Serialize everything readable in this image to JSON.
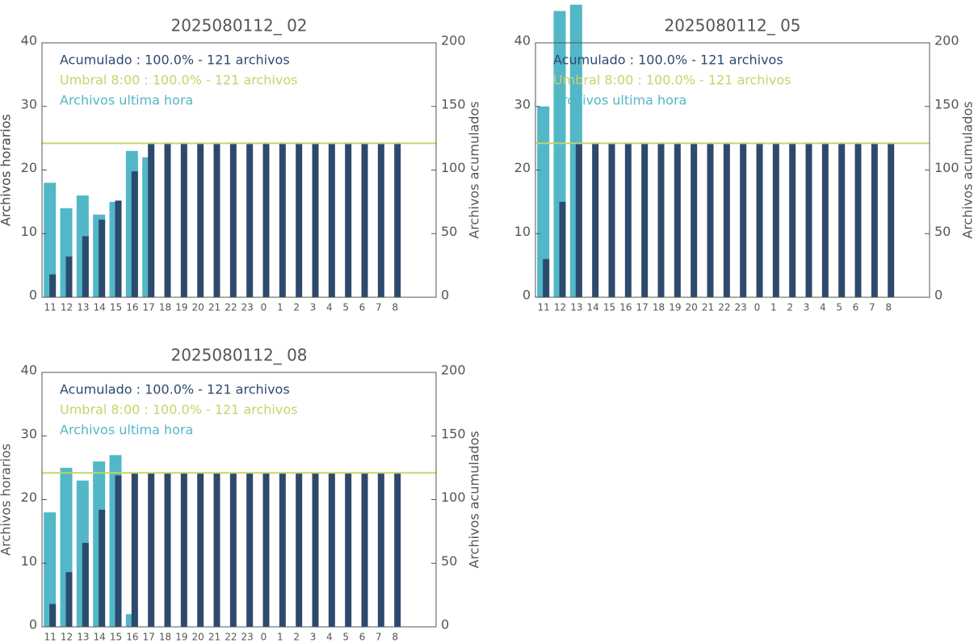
{
  "chart_data": [
    {
      "type": "bar",
      "title": "2025080112_ 02",
      "ylabel": "Archivos horarios",
      "y2label": "Archivos acumulados",
      "categories": [
        "11",
        "12",
        "13",
        "14",
        "15",
        "16",
        "17",
        "18",
        "19",
        "20",
        "21",
        "22",
        "23",
        "0",
        "1",
        "2",
        "3",
        "4",
        "5",
        "6",
        "7",
        "8"
      ],
      "series": [
        {
          "color": "#52b7c7",
          "values": [
            18,
            14,
            16,
            13,
            15,
            23,
            22,
            0,
            0,
            0,
            0,
            0,
            0,
            0,
            0,
            0,
            0,
            0,
            0,
            0,
            0,
            0
          ]
        },
        {
          "color": "#2c4a6e",
          "axis": "y2",
          "values": [
            18,
            32,
            48,
            61,
            76,
            99,
            121,
            121,
            121,
            121,
            121,
            121,
            121,
            121,
            121,
            121,
            121,
            121,
            121,
            121,
            121,
            121
          ]
        }
      ],
      "threshold": {
        "value": 121,
        "axis": "y2",
        "color": "#c5d46a"
      },
      "annotations": [
        {
          "text": "Acumulado : 100.0% - 121 archivos",
          "color": "#2c4a6e"
        },
        {
          "text": "Umbral 8:00 : 100.0% - 121 archivos",
          "color": "#c5d46a"
        },
        {
          "text": "Archivos ultima hora",
          "color": "#52b7c7"
        }
      ],
      "ylim": [
        0,
        40
      ],
      "yticks": [
        0,
        10,
        20,
        30,
        40
      ],
      "y2lim": [
        0,
        200
      ],
      "y2ticks": [
        0,
        50,
        100,
        150,
        200
      ]
    },
    {
      "type": "bar",
      "title": "2025080112_ 05",
      "ylabel": "Archivos horarios",
      "y2label": "Archivos acumulados",
      "categories": [
        "11",
        "12",
        "13",
        "14",
        "15",
        "16",
        "17",
        "18",
        "19",
        "20",
        "21",
        "22",
        "23",
        "0",
        "1",
        "2",
        "3",
        "4",
        "5",
        "6",
        "7",
        "8"
      ],
      "series": [
        {
          "color": "#52b7c7",
          "values": [
            30,
            45,
            46,
            0,
            0,
            0,
            0,
            0,
            0,
            0,
            0,
            0,
            0,
            0,
            0,
            0,
            0,
            0,
            0,
            0,
            0,
            0
          ]
        },
        {
          "color": "#2c4a6e",
          "axis": "y2",
          "values": [
            30,
            75,
            121,
            121,
            121,
            121,
            121,
            121,
            121,
            121,
            121,
            121,
            121,
            121,
            121,
            121,
            121,
            121,
            121,
            121,
            121,
            121
          ]
        }
      ],
      "threshold": {
        "value": 121,
        "axis": "y2",
        "color": "#c5d46a"
      },
      "annotations": [
        {
          "text": "Acumulado : 100.0% - 121 archivos",
          "color": "#2c4a6e"
        },
        {
          "text": "Umbral 8:00 : 100.0% - 121 archivos",
          "color": "#c5d46a"
        },
        {
          "text": "Archivos ultima hora",
          "color": "#52b7c7"
        }
      ],
      "ylim": [
        0,
        40
      ],
      "yticks": [
        0,
        10,
        20,
        30,
        40
      ],
      "y2lim": [
        0,
        200
      ],
      "y2ticks": [
        0,
        50,
        100,
        150,
        200
      ]
    },
    {
      "type": "bar",
      "title": "2025080112_ 08",
      "ylabel": "Archivos horarios",
      "y2label": "Archivos acumulados",
      "categories": [
        "11",
        "12",
        "13",
        "14",
        "15",
        "16",
        "17",
        "18",
        "19",
        "20",
        "21",
        "22",
        "23",
        "0",
        "1",
        "2",
        "3",
        "4",
        "5",
        "6",
        "7",
        "8"
      ],
      "series": [
        {
          "color": "#52b7c7",
          "values": [
            18,
            25,
            23,
            26,
            27,
            2,
            0,
            0,
            0,
            0,
            0,
            0,
            0,
            0,
            0,
            0,
            0,
            0,
            0,
            0,
            0,
            0
          ]
        },
        {
          "color": "#2c4a6e",
          "axis": "y2",
          "values": [
            18,
            43,
            66,
            92,
            119,
            121,
            121,
            121,
            121,
            121,
            121,
            121,
            121,
            121,
            121,
            121,
            121,
            121,
            121,
            121,
            121,
            121
          ]
        }
      ],
      "threshold": {
        "value": 121,
        "axis": "y2",
        "color": "#c5d46a"
      },
      "annotations": [
        {
          "text": "Acumulado : 100.0% - 121 archivos",
          "color": "#2c4a6e"
        },
        {
          "text": "Umbral 8:00 : 100.0% - 121 archivos",
          "color": "#c5d46a"
        },
        {
          "text": "Archivos ultima hora",
          "color": "#52b7c7"
        }
      ],
      "ylim": [
        0,
        40
      ],
      "yticks": [
        0,
        10,
        20,
        30,
        40
      ],
      "y2lim": [
        0,
        200
      ],
      "y2ticks": [
        0,
        50,
        100,
        150,
        200
      ]
    }
  ]
}
